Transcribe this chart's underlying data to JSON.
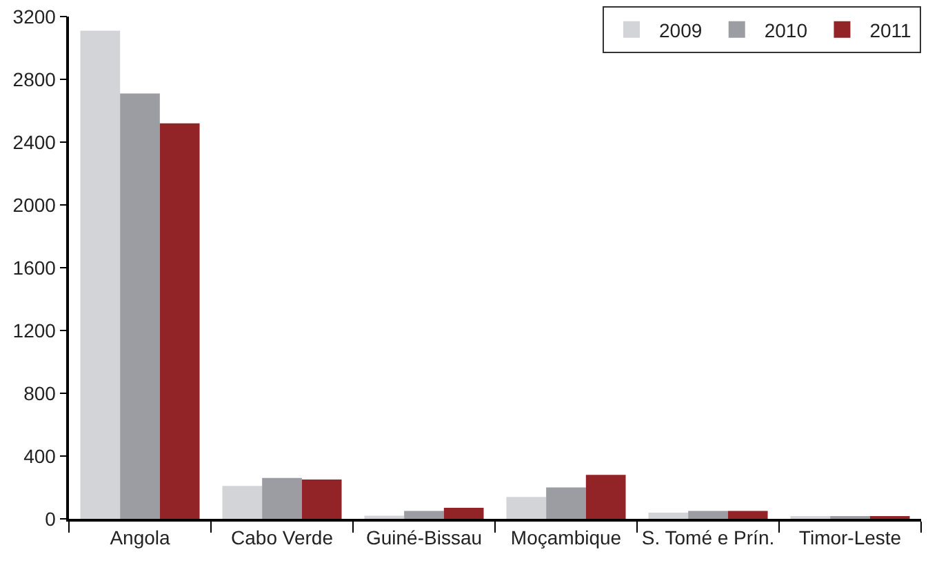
{
  "chart_data": {
    "type": "bar",
    "categories": [
      "Angola",
      "Cabo Verde",
      "Guiné-Bissau",
      "Moçambique",
      "S. Tomé e Prín.",
      "Timor-Leste"
    ],
    "series": [
      {
        "name": "2009",
        "color": "#d3d4d8",
        "values": [
          3110,
          210,
          20,
          140,
          40,
          10
        ]
      },
      {
        "name": "2010",
        "color": "#9c9da2",
        "values": [
          2710,
          260,
          50,
          200,
          50,
          10
        ]
      },
      {
        "name": "2011",
        "color": "#922326",
        "values": [
          2520,
          250,
          70,
          280,
          50,
          10
        ]
      }
    ],
    "ylim": [
      0,
      3200
    ],
    "yticks": [
      0,
      400,
      800,
      1200,
      1600,
      2000,
      2400,
      2800,
      3200
    ],
    "grid": false,
    "legend": "top right"
  }
}
